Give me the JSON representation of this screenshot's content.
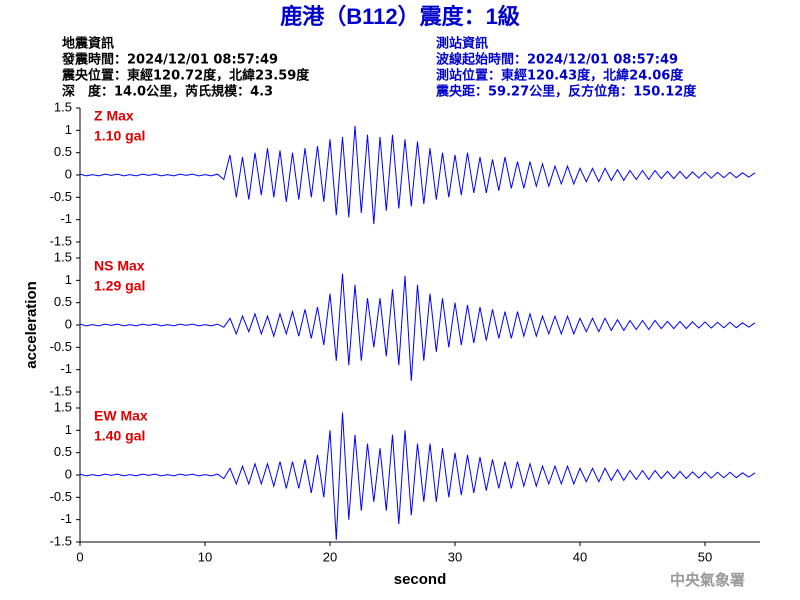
{
  "title": "鹿港（B112）震度：1級",
  "info_left": [
    "地震資訊",
    "發震時間：2024/12/01 08:57:49",
    "震央位置：東經120.72度，北緯23.59度",
    "深　度：14.0公里，芮氏規模：4.3"
  ],
  "info_right": [
    "測站資訊",
    "波線起始時間：2024/12/01 08:57:49",
    "測站位置：東經120.43度，北緯24.06度",
    "震央距：59.27公里，反方位角：150.12度"
  ],
  "watermark": "中央氣象署",
  "chart_data": [
    {
      "type": "line",
      "label": "Z Max",
      "max_label": "1.10 gal",
      "color": "#0000ff",
      "x": [
        0,
        0.5,
        1,
        1.5,
        2,
        2.5,
        3,
        3.5,
        4,
        4.5,
        5,
        5.5,
        6,
        6.5,
        7,
        7.5,
        8,
        8.5,
        9,
        9.5,
        10,
        10.5,
        11,
        11.5,
        12,
        12.5,
        13,
        13.5,
        14,
        14.5,
        15,
        15.5,
        16,
        16.5,
        17,
        17.5,
        18,
        18.5,
        19,
        19.5,
        20,
        20.5,
        21,
        21.5,
        22,
        22.5,
        23,
        23.5,
        24,
        24.5,
        25,
        25.5,
        26,
        26.5,
        27,
        27.5,
        28,
        28.5,
        29,
        29.5,
        30,
        30.5,
        31,
        31.5,
        32,
        32.5,
        33,
        33.5,
        34,
        34.5,
        35,
        35.5,
        36,
        36.5,
        37,
        37.5,
        38,
        38.5,
        39,
        39.5,
        40,
        40.5,
        41,
        41.5,
        42,
        42.5,
        43,
        43.5,
        44,
        44.5,
        45,
        45.5,
        46,
        46.5,
        47,
        47.5,
        48,
        48.5,
        49,
        49.5,
        50,
        50.5,
        51,
        51.5,
        52,
        52.5,
        53,
        53.5,
        54
      ],
      "values": [
        0.02,
        -0.02,
        0.01,
        -0.02,
        0.02,
        -0.01,
        0.02,
        -0.02,
        0.01,
        -0.02,
        0.02,
        -0.01,
        0.02,
        -0.02,
        0.01,
        -0.02,
        0.02,
        -0.01,
        0.02,
        -0.02,
        0.01,
        -0.02,
        0.02,
        -0.1,
        0.45,
        -0.5,
        0.4,
        -0.55,
        0.5,
        -0.45,
        0.6,
        -0.5,
        0.55,
        -0.6,
        0.5,
        -0.55,
        0.6,
        -0.5,
        0.65,
        -0.6,
        0.8,
        -0.9,
        0.85,
        -0.95,
        1.1,
        -0.85,
        0.9,
        -1.1,
        0.85,
        -0.8,
        0.9,
        -0.75,
        0.8,
        -0.7,
        0.75,
        -0.65,
        0.6,
        -0.55,
        0.5,
        -0.5,
        0.45,
        -0.45,
        0.5,
        -0.4,
        0.4,
        -0.4,
        0.35,
        -0.35,
        0.4,
        -0.3,
        0.3,
        -0.3,
        0.3,
        -0.25,
        0.25,
        -0.25,
        0.2,
        -0.2,
        0.2,
        -0.2,
        0.15,
        -0.15,
        0.15,
        -0.15,
        0.15,
        -0.12,
        0.12,
        -0.12,
        0.1,
        -0.1,
        0.1,
        -0.1,
        0.1,
        -0.08,
        0.08,
        -0.08,
        0.08,
        -0.08,
        0.07,
        -0.07,
        0.07,
        -0.07,
        0.06,
        -0.06,
        0.06,
        -0.06,
        0.05,
        -0.05,
        0.05
      ],
      "xlim": [
        0,
        54.4
      ],
      "ylim": [
        -1.5,
        1.5
      ],
      "yticks": [
        -1.5,
        -1,
        -0.5,
        0,
        0.5,
        1,
        1.5
      ]
    },
    {
      "type": "line",
      "label": "NS Max",
      "max_label": "1.29 gal",
      "color": "#0000ff",
      "y_label": "acceleration",
      "x": [
        0,
        0.5,
        1,
        1.5,
        2,
        2.5,
        3,
        3.5,
        4,
        4.5,
        5,
        5.5,
        6,
        6.5,
        7,
        7.5,
        8,
        8.5,
        9,
        9.5,
        10,
        10.5,
        11,
        11.5,
        12,
        12.5,
        13,
        13.5,
        14,
        14.5,
        15,
        15.5,
        16,
        16.5,
        17,
        17.5,
        18,
        18.5,
        19,
        19.5,
        20,
        20.5,
        21,
        21.5,
        22,
        22.5,
        23,
        23.5,
        24,
        24.5,
        25,
        25.5,
        26,
        26.5,
        27,
        27.5,
        28,
        28.5,
        29,
        29.5,
        30,
        30.5,
        31,
        31.5,
        32,
        32.5,
        33,
        33.5,
        34,
        34.5,
        35,
        35.5,
        36,
        36.5,
        37,
        37.5,
        38,
        38.5,
        39,
        39.5,
        40,
        40.5,
        41,
        41.5,
        42,
        42.5,
        43,
        43.5,
        44,
        44.5,
        45,
        45.5,
        46,
        46.5,
        47,
        47.5,
        48,
        48.5,
        49,
        49.5,
        50,
        50.5,
        51,
        51.5,
        52,
        52.5,
        53,
        53.5,
        54
      ],
      "values": [
        0.02,
        -0.02,
        0.01,
        -0.02,
        0.02,
        -0.01,
        0.02,
        -0.02,
        0.01,
        -0.02,
        0.02,
        -0.01,
        0.02,
        -0.02,
        0.01,
        -0.02,
        0.02,
        -0.01,
        0.02,
        -0.02,
        0.01,
        -0.02,
        0.02,
        -0.05,
        0.15,
        -0.2,
        0.2,
        -0.15,
        0.25,
        -0.2,
        0.2,
        -0.25,
        0.25,
        -0.2,
        0.3,
        -0.25,
        0.35,
        -0.3,
        0.4,
        -0.45,
        0.7,
        -0.8,
        1.15,
        -0.9,
        0.9,
        -0.8,
        0.6,
        -0.5,
        0.6,
        -0.7,
        0.8,
        -0.9,
        1.1,
        -1.25,
        0.9,
        -0.8,
        0.7,
        -0.6,
        0.6,
        -0.5,
        0.5,
        -0.45,
        0.45,
        -0.4,
        0.4,
        -0.35,
        0.35,
        -0.3,
        0.3,
        -0.3,
        0.3,
        -0.25,
        0.25,
        -0.25,
        0.2,
        -0.2,
        0.2,
        -0.2,
        0.2,
        -0.2,
        0.15,
        -0.15,
        0.15,
        -0.15,
        0.15,
        -0.12,
        0.12,
        -0.12,
        0.1,
        -0.1,
        0.1,
        -0.1,
        0.1,
        -0.08,
        0.08,
        -0.08,
        0.08,
        -0.08,
        0.07,
        -0.07,
        0.07,
        -0.07,
        0.06,
        -0.06,
        0.06,
        -0.06,
        0.05,
        -0.05,
        0.05
      ],
      "xlim": [
        0,
        54.4
      ],
      "ylim": [
        -1.5,
        1.5
      ],
      "yticks": [
        -1.5,
        -1,
        -0.5,
        0,
        0.5,
        1,
        1.5
      ]
    },
    {
      "type": "line",
      "label": "EW Max",
      "max_label": "1.40 gal",
      "color": "#0000ff",
      "x_label": "second",
      "x": [
        0,
        0.5,
        1,
        1.5,
        2,
        2.5,
        3,
        3.5,
        4,
        4.5,
        5,
        5.5,
        6,
        6.5,
        7,
        7.5,
        8,
        8.5,
        9,
        9.5,
        10,
        10.5,
        11,
        11.5,
        12,
        12.5,
        13,
        13.5,
        14,
        14.5,
        15,
        15.5,
        16,
        16.5,
        17,
        17.5,
        18,
        18.5,
        19,
        19.5,
        20,
        20.5,
        21,
        21.5,
        22,
        22.5,
        23,
        23.5,
        24,
        24.5,
        25,
        25.5,
        26,
        26.5,
        27,
        27.5,
        28,
        28.5,
        29,
        29.5,
        30,
        30.5,
        31,
        31.5,
        32,
        32.5,
        33,
        33.5,
        34,
        34.5,
        35,
        35.5,
        36,
        36.5,
        37,
        37.5,
        38,
        38.5,
        39,
        39.5,
        40,
        40.5,
        41,
        41.5,
        42,
        42.5,
        43,
        43.5,
        44,
        44.5,
        45,
        45.5,
        46,
        46.5,
        47,
        47.5,
        48,
        48.5,
        49,
        49.5,
        50,
        50.5,
        51,
        51.5,
        52,
        52.5,
        53,
        53.5,
        54
      ],
      "values": [
        0.02,
        -0.02,
        0.01,
        -0.02,
        0.02,
        -0.01,
        0.02,
        -0.02,
        0.01,
        -0.02,
        0.02,
        -0.01,
        0.02,
        -0.02,
        0.01,
        -0.02,
        0.02,
        -0.01,
        0.02,
        -0.02,
        0.01,
        -0.02,
        0.02,
        -0.08,
        0.15,
        -0.2,
        0.2,
        -0.2,
        0.25,
        -0.2,
        0.25,
        -0.25,
        0.3,
        -0.3,
        0.3,
        -0.3,
        0.35,
        -0.4,
        0.45,
        -0.5,
        1.0,
        -1.45,
        1.4,
        -1.0,
        0.9,
        -0.8,
        0.7,
        -0.6,
        0.6,
        -0.8,
        0.9,
        -1.1,
        1.0,
        -0.9,
        0.7,
        -0.6,
        0.7,
        -0.6,
        0.6,
        -0.5,
        0.5,
        -0.45,
        0.45,
        -0.4,
        0.4,
        -0.35,
        0.35,
        -0.3,
        0.3,
        -0.3,
        0.3,
        -0.25,
        0.25,
        -0.25,
        0.2,
        -0.2,
        0.2,
        -0.2,
        0.2,
        -0.2,
        0.15,
        -0.15,
        0.15,
        -0.15,
        0.15,
        -0.12,
        0.12,
        -0.12,
        0.1,
        -0.1,
        0.1,
        -0.1,
        0.1,
        -0.08,
        0.08,
        -0.08,
        0.08,
        -0.08,
        0.07,
        -0.07,
        0.07,
        -0.07,
        0.06,
        -0.06,
        0.06,
        -0.06,
        0.05,
        -0.05,
        0.05
      ],
      "xlim": [
        0,
        54.4
      ],
      "ylim": [
        -1.5,
        1.5
      ],
      "yticks": [
        -1.5,
        -1,
        -0.5,
        0,
        0.5,
        1,
        1.5
      ],
      "xticks": [
        0,
        10,
        20,
        30,
        40,
        50
      ]
    }
  ]
}
